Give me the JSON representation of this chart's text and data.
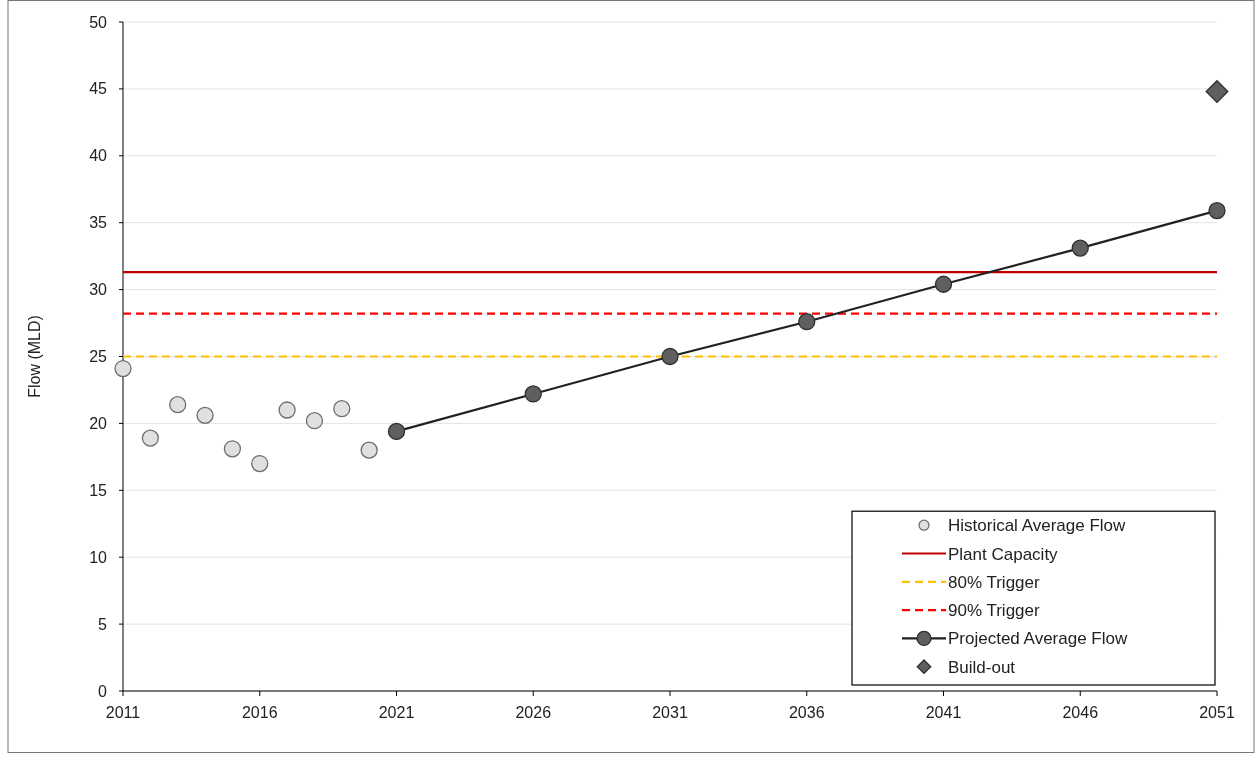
{
  "chart_data": {
    "type": "line",
    "ylabel": "Flow (MLD)",
    "xlim": [
      2011,
      2051
    ],
    "xticks": [
      2011,
      2016,
      2021,
      2026,
      2031,
      2036,
      2041,
      2046,
      2051
    ],
    "ylim": [
      0,
      50
    ],
    "yticks": [
      0,
      5,
      10,
      15,
      20,
      25,
      30,
      35,
      40,
      45,
      50
    ],
    "grid": "y",
    "legend": "bottom right",
    "series": [
      {
        "name": "Historical Average Flow",
        "type": "scatter",
        "marker": "circle",
        "color": "#e0e0e0",
        "x": [
          2011,
          2012,
          2013,
          2014,
          2015,
          2016,
          2017,
          2018,
          2019,
          2020
        ],
        "values": [
          24.1,
          18.9,
          21.4,
          20.6,
          18.1,
          17.0,
          21.0,
          20.2,
          21.1,
          18.0
        ]
      },
      {
        "name": "Plant Capacity",
        "marker": "none",
        "line_style": "solid",
        "color": "#c00000",
        "x": [
          2011,
          2051
        ],
        "values": [
          31.3,
          31.3
        ]
      },
      {
        "name": "80% Trigger",
        "marker": "none",
        "line_style": "dashed",
        "color": "#ffc000",
        "x": [
          2011,
          2051
        ],
        "values": [
          25.0,
          25.0
        ]
      },
      {
        "name": "90% Trigger",
        "marker": "none",
        "line_style": "dashed",
        "color": "#ff0000",
        "x": [
          2011,
          2051
        ],
        "values": [
          28.2,
          28.2
        ]
      },
      {
        "name": "Projected Average Flow",
        "marker": "circle",
        "line_style": "solid",
        "color": "#5f5f5f",
        "x": [
          2021,
          2026,
          2031,
          2036,
          2041,
          2046,
          2051
        ],
        "values": [
          19.4,
          22.2,
          25.0,
          27.6,
          30.4,
          33.1,
          35.9
        ]
      },
      {
        "name": "Build-out",
        "type": "scatter",
        "marker": "diamond",
        "color": "#5f5f5f",
        "x": [
          2051
        ],
        "values": [
          44.8
        ]
      }
    ]
  }
}
